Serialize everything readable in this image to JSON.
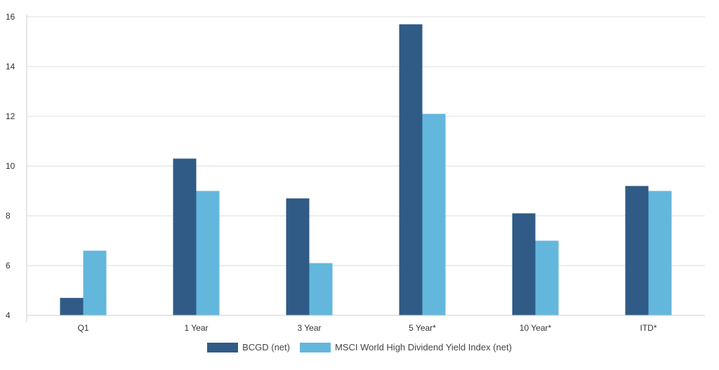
{
  "chart_data": {
    "type": "bar",
    "categories": [
      "Q1",
      "1 Year",
      "3 Year",
      "5 Year*",
      "10 Year*",
      "ITD*"
    ],
    "series": [
      {
        "name": "BCGD (net)",
        "color": "#2f5b86",
        "values": [
          4.7,
          10.3,
          8.7,
          15.7,
          8.1,
          9.2
        ]
      },
      {
        "name": "MSCI World High Dividend Yield Index (net)",
        "color": "#63b7dc",
        "values": [
          6.6,
          9.0,
          6.1,
          12.1,
          7.0,
          9.0
        ]
      }
    ],
    "ylim": [
      4,
      16
    ],
    "yticks": [
      "4",
      "6",
      "8",
      "10",
      "12",
      "14",
      "16"
    ],
    "grid": true,
    "legend_position": "bottom-center"
  }
}
